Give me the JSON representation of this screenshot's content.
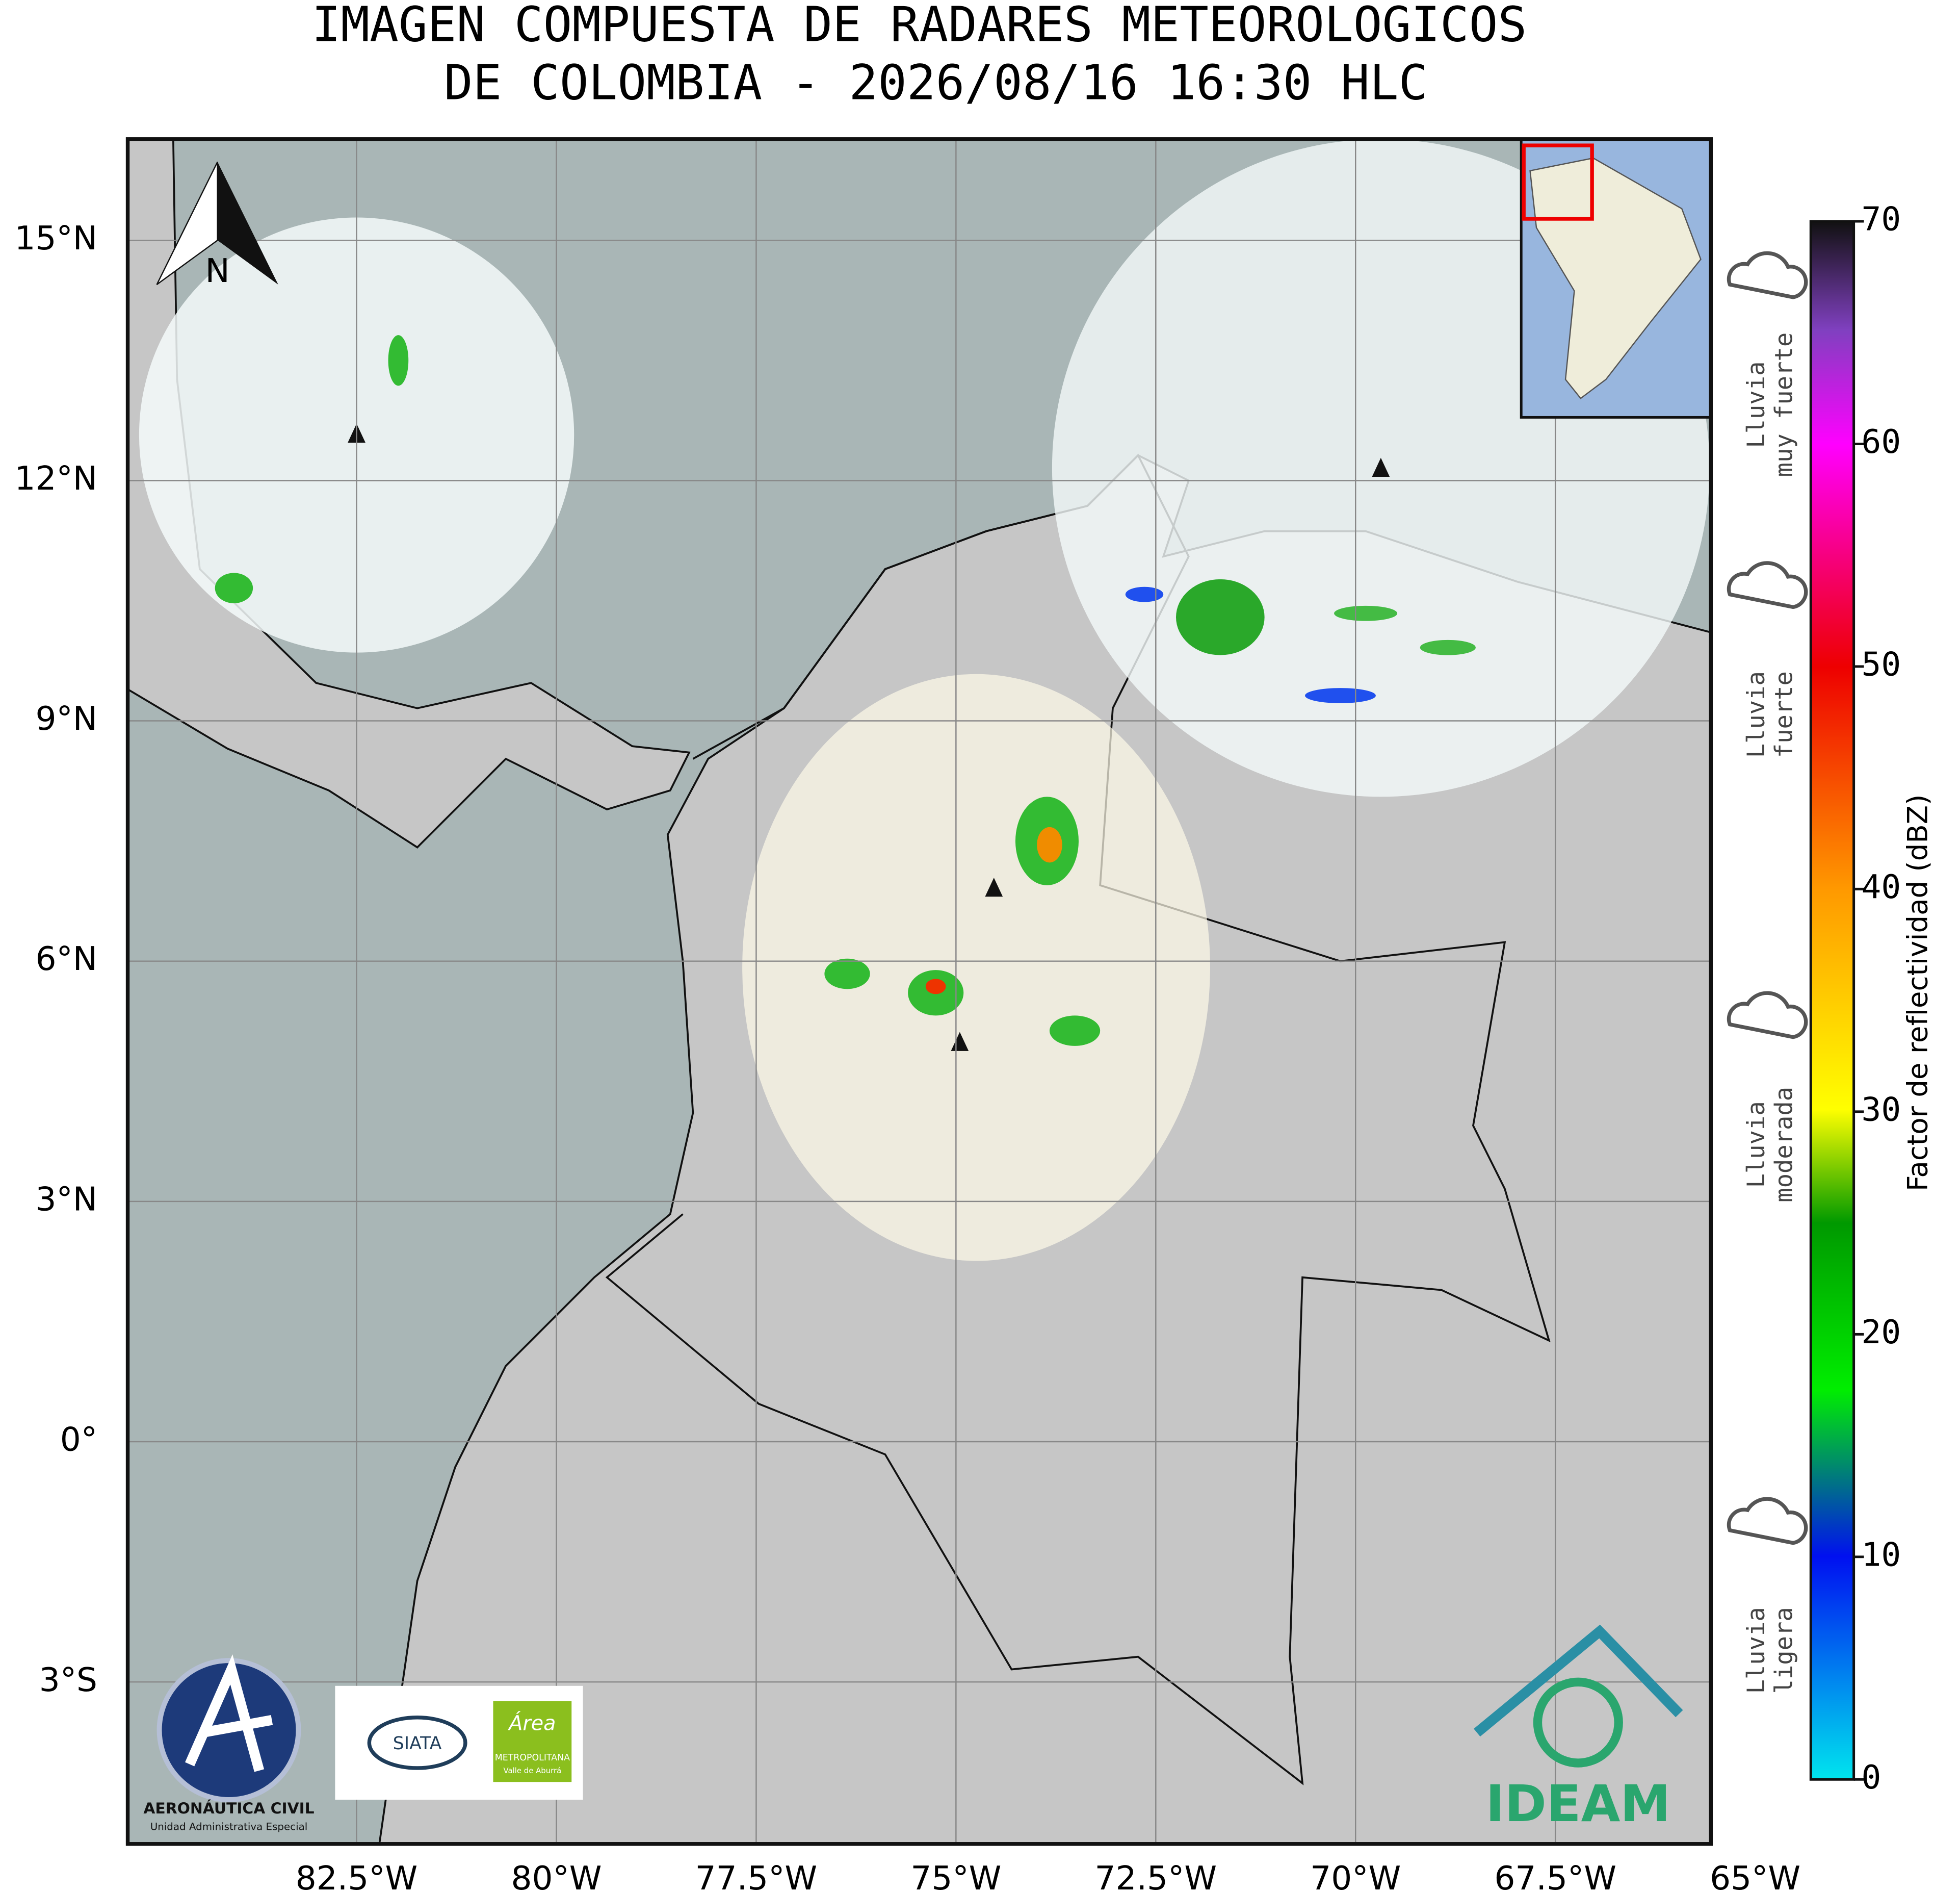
{
  "title": [
    "IMAGEN COMPUESTA DE RADARES METEOROLOGICOS",
    "DE COLOMBIA - 2026/08/16 16:30 HLC"
  ],
  "map": {
    "north_label": "N",
    "lat_ticks": [
      {
        "value": 15,
        "label": "15°N"
      },
      {
        "value": 12,
        "label": "12°N"
      },
      {
        "value": 9,
        "label": "9°N"
      },
      {
        "value": 6,
        "label": "6°N"
      },
      {
        "value": 3,
        "label": "3°N"
      },
      {
        "value": 0,
        "label": "0°"
      },
      {
        "value": -3,
        "label": "3°S"
      }
    ],
    "lon_ticks": [
      {
        "value": -82.5,
        "label": "82.5°W"
      },
      {
        "value": -80,
        "label": "80°W"
      },
      {
        "value": -77.5,
        "label": "77.5°W"
      },
      {
        "value": -75,
        "label": "75°W"
      },
      {
        "value": -72.5,
        "label": "72.5°W"
      },
      {
        "value": -70,
        "label": "70°W"
      },
      {
        "value": -67.5,
        "label": "67.5°W"
      },
      {
        "value": -65,
        "label": "65°W"
      }
    ]
  },
  "colorbar": {
    "label": "Factor de reflectividad (dBZ)",
    "range": [
      0,
      70
    ],
    "ticks": [
      0,
      10,
      20,
      30,
      40,
      50,
      60,
      70
    ]
  },
  "rain_categories": [
    [
      "Lluvia",
      "muy fuerte"
    ],
    [
      "Lluvia",
      "fuerte"
    ],
    [
      "Lluvia",
      "moderada"
    ],
    [
      "Lluvia",
      "ligera"
    ]
  ],
  "logos": {
    "aerocivil": [
      "AERONÁUTICA CIVIL",
      "Unidad Administrativa Especial"
    ],
    "siata": "SIATA",
    "area": [
      "Área",
      "METROPOLITANA",
      "Valle de Aburrá"
    ],
    "ideam": "IDEAM"
  }
}
